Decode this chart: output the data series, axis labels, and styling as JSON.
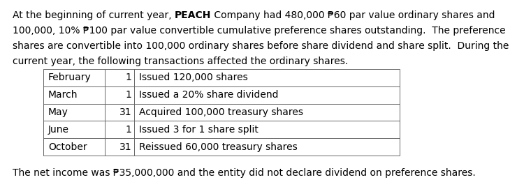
{
  "line1_pre": "At the beginning of current year, ",
  "line1_bold": "PEACH",
  "line1_post": " Company had 480,000 ₱60 par value ordinary shares and",
  "line2": "100,000, 10% ₱100 par value convertible cumulative preference shares outstanding.  The preference",
  "line3": "shares are convertible into 100,000 ordinary shares before share dividend and share split.  During the",
  "line4": "current year, the following transactions affected the ordinary shares.",
  "table_rows": [
    [
      "February",
      "1",
      "Issued 120,000 shares"
    ],
    [
      "March",
      "1",
      "Issued a 20% share dividend"
    ],
    [
      "May",
      "31",
      "Acquired 100,000 treasury shares"
    ],
    [
      "June",
      "1",
      "Issued 3 for 1 share split"
    ],
    [
      "October",
      "31",
      "Reissued 60,000 treasury shares"
    ]
  ],
  "footer": "The net income was ₱35,000,000 and the entity did not declare dividend on preference shares.",
  "bg_color": "#ffffff",
  "text_color": "#000000",
  "font_size": 10.0,
  "table_font_size": 10.0
}
